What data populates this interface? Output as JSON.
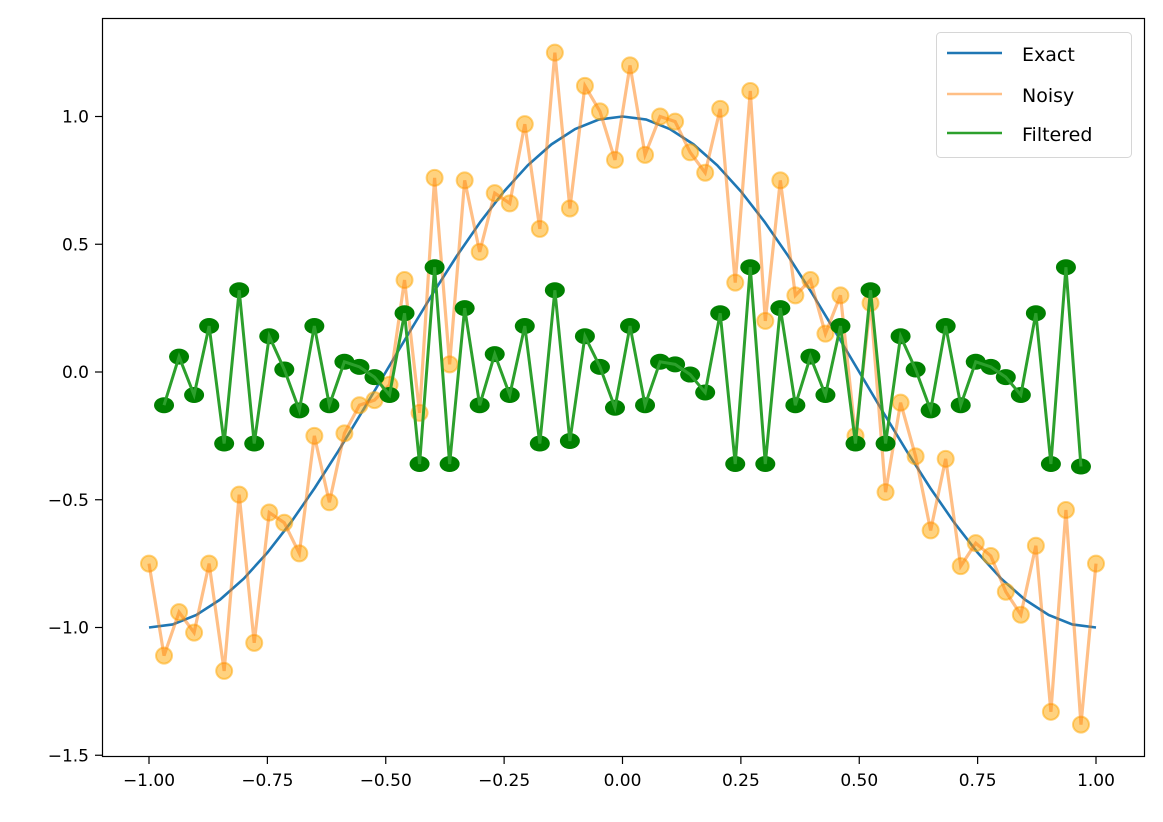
{
  "chart_data": {
    "type": "line",
    "title": "",
    "xlabel": "",
    "ylabel": "",
    "xlim": [
      -1.1,
      1.1
    ],
    "ylim": [
      -1.5,
      1.38
    ],
    "grid": false,
    "legend_placement": "top-right",
    "xticks": [
      -1.0,
      -0.75,
      -0.5,
      -0.25,
      0.0,
      0.25,
      0.5,
      0.75,
      1.0
    ],
    "xtick_labels": [
      "−1.00",
      "−0.75",
      "−0.50",
      "−0.25",
      "0.00",
      "0.25",
      "0.50",
      "0.75",
      "1.00"
    ],
    "yticks": [
      -1.5,
      -1.0,
      -0.5,
      0.0,
      0.5,
      1.0
    ],
    "ytick_labels": [
      "−1.5",
      "−1.0",
      "−0.5",
      "0.0",
      "0.5",
      "1.0"
    ],
    "series": [
      {
        "name": "Exact",
        "color": "#1f77b4",
        "x_range": [
          -1,
          1
        ],
        "values": [
          -1,
          -0.988,
          -0.951,
          -0.891,
          -0.809,
          -0.707,
          -0.588,
          -0.454,
          -0.309,
          -0.156,
          0,
          0.156,
          0.309,
          0.454,
          0.588,
          0.707,
          0.809,
          0.891,
          0.951,
          0.988,
          1,
          0.988,
          0.951,
          0.891,
          0.809,
          0.707,
          0.588,
          0.454,
          0.309,
          0.156,
          0,
          -0.156,
          -0.309,
          -0.454,
          -0.588,
          -0.707,
          -0.809,
          -0.891,
          -0.951,
          -0.988,
          -1
        ]
      },
      {
        "name": "Noisy",
        "color": "#ff7f0e",
        "marker_color": "#ffa500",
        "x_range": [
          -1,
          1
        ],
        "values": [
          -0.75,
          -1.11,
          -0.94,
          -1.02,
          -0.75,
          -1.17,
          -0.48,
          -1.06,
          -0.55,
          -0.59,
          -0.71,
          -0.25,
          -0.51,
          -0.24,
          -0.13,
          -0.11,
          -0.05,
          0.36,
          -0.16,
          0.76,
          0.03,
          0.75,
          0.47,
          0.7,
          0.66,
          0.97,
          0.56,
          1.25,
          0.64,
          1.12,
          1.02,
          0.83,
          1.2,
          0.85,
          1.0,
          0.98,
          0.86,
          0.78,
          1.03,
          0.35,
          1.1,
          0.2,
          0.75,
          0.3,
          0.36,
          0.15,
          0.3,
          -0.25,
          0.27,
          -0.47,
          -0.12,
          -0.33,
          -0.62,
          -0.34,
          -0.76,
          -0.67,
          -0.72,
          -0.86,
          -0.95,
          -0.68,
          -1.33,
          -0.54,
          -1.38,
          -0.75
        ]
      },
      {
        "name": "Filtered",
        "color": "#2ca02c",
        "marker_color": "#008000",
        "x_range": [
          -1,
          1
        ],
        "total_points": 64,
        "start_index": 1,
        "values": [
          -0.13,
          0.06,
          -0.09,
          0.18,
          -0.28,
          0.32,
          -0.28,
          0.14,
          0.01,
          -0.15,
          0.18,
          -0.13,
          0.04,
          0.02,
          -0.02,
          -0.09,
          0.23,
          -0.36,
          0.41,
          -0.36,
          0.25,
          -0.13,
          0.07,
          -0.09,
          0.18,
          -0.28,
          0.32,
          -0.27,
          0.14,
          0.02,
          -0.14,
          0.18,
          -0.13,
          0.04,
          0.03,
          -0.01,
          -0.08,
          0.23,
          -0.36,
          0.41,
          -0.36,
          0.25,
          -0.13,
          0.06,
          -0.09,
          0.18,
          -0.28,
          0.32,
          -0.28,
          0.14,
          0.01,
          -0.15,
          0.18,
          -0.13,
          0.04,
          0.02,
          -0.02,
          -0.09,
          0.23,
          -0.36,
          0.41,
          -0.37
        ]
      }
    ]
  }
}
